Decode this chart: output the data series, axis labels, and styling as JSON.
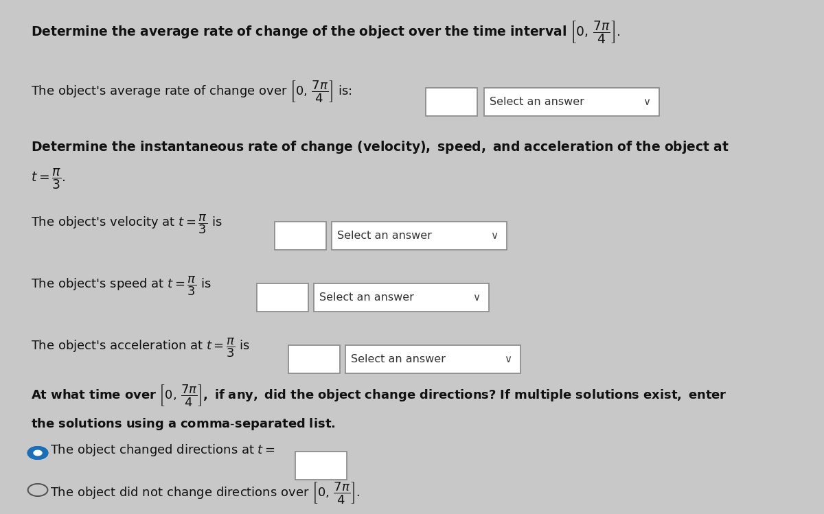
{
  "bg_color": "#c8c8c8",
  "text_color": "#111111",
  "select_answer_text": "Select an answer",
  "box_facecolor": "#ffffff",
  "box_edgecolor": "#888888",
  "dropdown_edgecolor": "#888888"
}
